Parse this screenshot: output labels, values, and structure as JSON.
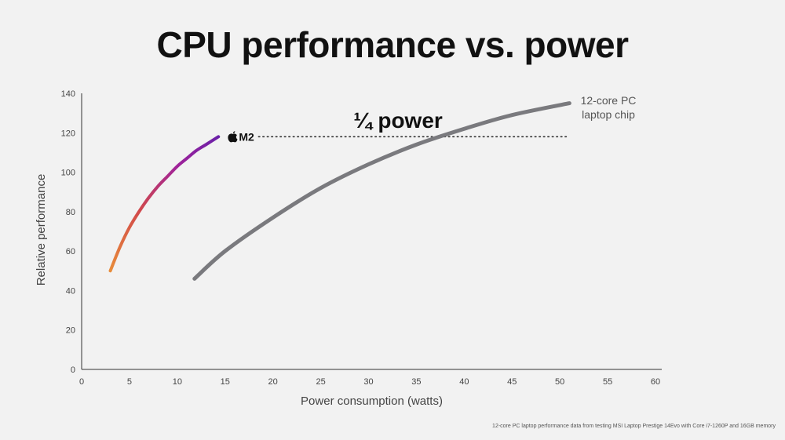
{
  "slide": {
    "title": "CPU performance vs. power",
    "footnote": "12-core PC laptop performance data from testing MSI Laptop Prestige 14Evo with Core i7-1260P and 16GB memory"
  },
  "chart_data": {
    "type": "line",
    "title": "CPU performance vs. power",
    "xlabel": "Power consumption (watts)",
    "ylabel": "Relative performance",
    "xlim": [
      0,
      60
    ],
    "ylim": [
      0,
      140
    ],
    "xticks": [
      0,
      5,
      10,
      15,
      20,
      25,
      30,
      35,
      40,
      45,
      50,
      55,
      60
    ],
    "yticks": [
      0,
      20,
      40,
      60,
      80,
      100,
      120,
      140
    ],
    "grid": false,
    "legend": "none",
    "series": [
      {
        "name": "M2",
        "color_gradient": [
          "#e88c3a",
          "#d24a4a",
          "#a0239a",
          "#6b20a8"
        ],
        "x": [
          3.0,
          4.0,
          5.0,
          6.0,
          7.0,
          8.0,
          9.0,
          10.0,
          11.0,
          12.0,
          13.0,
          14.3
        ],
        "y": [
          50,
          62,
          72,
          80,
          87,
          93,
          98,
          103,
          107,
          111,
          114,
          118
        ]
      },
      {
        "name": "12-core PC laptop chip",
        "color": "#7a7a7e",
        "x": [
          11.8,
          15,
          20,
          25,
          30,
          35,
          40,
          45,
          51
        ],
        "y": [
          46,
          60,
          77,
          92,
          104,
          114,
          122,
          129,
          135
        ]
      }
    ],
    "annotations": {
      "quarter_power": "¼ power",
      "m2_label": "M2",
      "m2_logo": "apple-logo-icon",
      "pc_label_line1": "12-core PC",
      "pc_label_line2": "laptop chip",
      "reference_y": 118,
      "reference_x_start": 18.5,
      "reference_x_end": 51
    }
  }
}
